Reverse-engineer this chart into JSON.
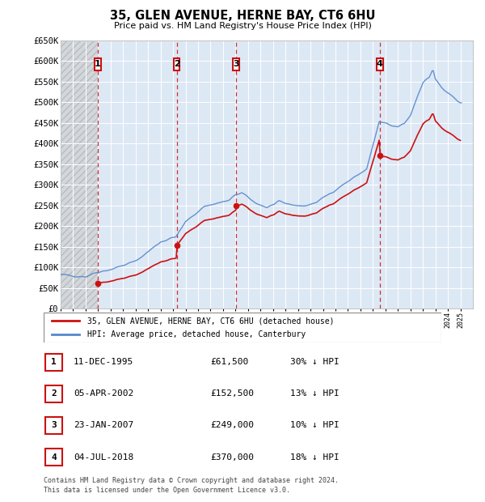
{
  "title": "35, GLEN AVENUE, HERNE BAY, CT6 6HU",
  "subtitle": "Price paid vs. HM Land Registry's House Price Index (HPI)",
  "sales": [
    {
      "label": "1",
      "date": "1995-12-11",
      "price": 61500,
      "hpi_pct": "30% ↓ HPI"
    },
    {
      "label": "2",
      "date": "2002-04-05",
      "price": 152500,
      "hpi_pct": "13% ↓ HPI"
    },
    {
      "label": "3",
      "date": "2007-01-23",
      "price": 249000,
      "hpi_pct": "10% ↓ HPI"
    },
    {
      "label": "4",
      "date": "2018-07-04",
      "price": 370000,
      "hpi_pct": "18% ↓ HPI"
    }
  ],
  "sale_dates_display": [
    "11-DEC-1995",
    "05-APR-2002",
    "23-JAN-2007",
    "04-JUL-2018"
  ],
  "sale_prices_display": [
    "£61,500",
    "£152,500",
    "£249,000",
    "£370,000"
  ],
  "legend_line1": "35, GLEN AVENUE, HERNE BAY, CT6 6HU (detached house)",
  "legend_line2": "HPI: Average price, detached house, Canterbury",
  "footer1": "Contains HM Land Registry data © Crown copyright and database right 2024.",
  "footer2": "This data is licensed under the Open Government Licence v3.0.",
  "ylim": [
    0,
    650000
  ],
  "yticks": [
    0,
    50000,
    100000,
    150000,
    200000,
    250000,
    300000,
    350000,
    400000,
    450000,
    500000,
    550000,
    600000,
    650000
  ],
  "ytick_labels": [
    "£0",
    "£50K",
    "£100K",
    "£150K",
    "£200K",
    "£250K",
    "£300K",
    "£350K",
    "£400K",
    "£450K",
    "£500K",
    "£550K",
    "£600K",
    "£650K"
  ],
  "xstart": 1993,
  "xend": 2026,
  "hpi_color": "#5588cc",
  "price_color": "#cc1111",
  "vline_color": "#cc1111",
  "box_color": "#cc1111",
  "background_color": "#ffffff",
  "plot_bg_color": "#dde8f5",
  "grid_color": "#ffffff",
  "hatch_color": "#bbbbbb"
}
